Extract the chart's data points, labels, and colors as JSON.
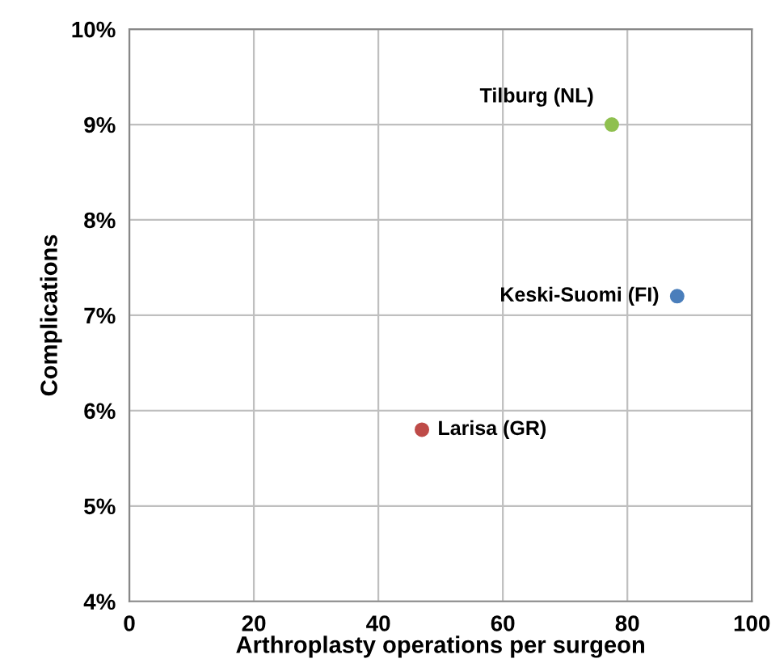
{
  "chart_data": {
    "type": "scatter",
    "xlabel": "Arthroplasty operations per surgeon",
    "ylabel": "Complications",
    "series": [
      {
        "name": "Tilburg (NL)",
        "color": "#8fc04f",
        "x": [
          77.5
        ],
        "values": [
          9.0
        ]
      },
      {
        "name": "Keski-Suomi (FI)",
        "color": "#4a7ebb",
        "x": [
          88
        ],
        "values": [
          7.2
        ]
      },
      {
        "name": "Larisa (GR)",
        "color": "#be4b48",
        "x": [
          47
        ],
        "values": [
          5.8
        ]
      }
    ],
    "xlim": [
      0,
      100
    ],
    "xticks": [
      0,
      20,
      40,
      60,
      80,
      100
    ],
    "ylim": [
      4,
      10
    ],
    "yticks": [
      {
        "value": 4,
        "label": "4%"
      },
      {
        "value": 5,
        "label": "5%"
      },
      {
        "value": 6,
        "label": "6%"
      },
      {
        "value": 7,
        "label": "7%"
      },
      {
        "value": 8,
        "label": "8%"
      },
      {
        "value": 9,
        "label": "9%"
      },
      {
        "value": 10,
        "label": "10%"
      }
    ],
    "grid": true,
    "marker": "circle"
  }
}
